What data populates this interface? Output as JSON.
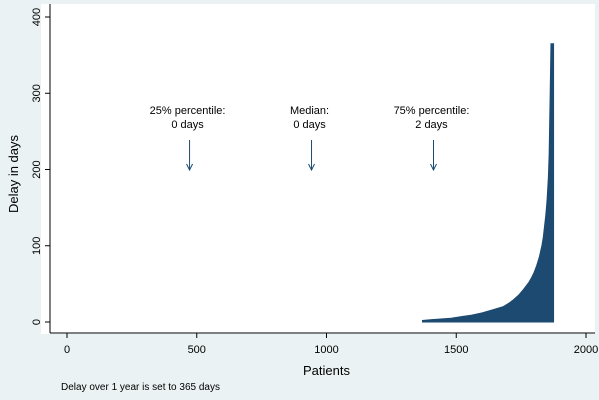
{
  "chart_data": {
    "type": "area",
    "xlabel": "Patients",
    "ylabel": "Delay in days",
    "xlim": [
      0,
      2000
    ],
    "ylim": [
      0,
      400
    ],
    "xticks": [
      0,
      500,
      1000,
      1500,
      2000
    ],
    "yticks": [
      0,
      100,
      200,
      300,
      400
    ],
    "grid": false,
    "color": "#1c4a70",
    "note": "Delay over 1 year is set to 365 days",
    "x": [
      1370,
      1400,
      1440,
      1480,
      1520,
      1560,
      1600,
      1640,
      1680,
      1700,
      1720,
      1740,
      1760,
      1780,
      1790,
      1800,
      1810,
      1820,
      1830,
      1835,
      1840,
      1845,
      1850,
      1855,
      1858,
      1860,
      1862,
      1865,
      1870,
      1875
    ],
    "values": [
      2,
      3,
      4,
      5,
      7,
      9,
      12,
      16,
      20,
      24,
      29,
      35,
      43,
      52,
      58,
      65,
      74,
      85,
      100,
      110,
      125,
      140,
      160,
      190,
      220,
      260,
      300,
      365,
      365,
      365
    ],
    "annotations": [
      {
        "id": "p25",
        "lines": [
          "25% percentile:",
          "0 days"
        ],
        "x": 480
      },
      {
        "id": "median",
        "lines": [
          "Median:",
          "0 days"
        ],
        "x": 950
      },
      {
        "id": "p75",
        "lines": [
          "75% percentile:",
          "2 days"
        ],
        "x": 1420
      }
    ]
  }
}
